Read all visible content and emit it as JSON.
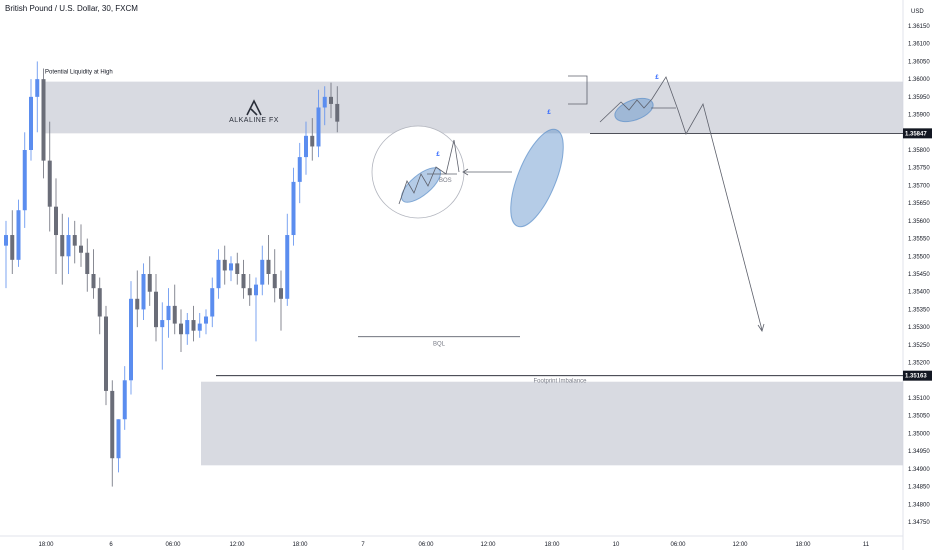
{
  "header": {
    "title": "British Pound / U.S. Dollar, 30, FXCM"
  },
  "axis": {
    "currency_label": "USD"
  },
  "colors": {
    "bull": "#5b8def",
    "bear": "#6a6d78",
    "zone": "#d1d4dc",
    "ellipse": "#5b8fc9",
    "accent": "#2962ff",
    "line": "#787b86"
  },
  "chart_data": {
    "type": "candlestick",
    "ylim": [
      1.2466,
      1.3627
    ],
    "y_ticks": [
      "1.36150",
      "1.36100",
      "1.36050",
      "1.36000",
      "1.35950",
      "1.35900",
      "1.35847",
      "1.35800",
      "1.35750",
      "1.35700",
      "1.35650",
      "1.35600",
      "1.35550",
      "1.35500",
      "1.35450",
      "1.35400",
      "1.35350",
      "1.35300",
      "1.35250",
      "1.35200",
      "1.35163",
      "1.35100",
      "1.35050",
      "1.35000",
      "1.34950",
      "1.34900",
      "1.34850",
      "1.34800",
      "1.34750"
    ],
    "x_ticks": [
      "18:00",
      "6",
      "06:00",
      "12:00",
      "18:00",
      "7",
      "06:00",
      "12:00",
      "18:00",
      "10",
      "06:00",
      "12:00",
      "18:00",
      "11"
    ],
    "price_tags": [
      {
        "price": 1.35847,
        "label": "1.35847"
      },
      {
        "price": 1.35163,
        "label": "1.35163"
      }
    ],
    "zones": [
      {
        "name": "Potential Liquidity at High",
        "from": 1.35847,
        "to": 1.35993
      },
      {
        "name": "Footprint Imbalance",
        "from": 1.3491,
        "to": 1.35146
      }
    ],
    "candles": [
      {
        "o": 1.3553,
        "h": 1.356,
        "l": 1.3541,
        "c": 1.3556
      },
      {
        "o": 1.3556,
        "h": 1.3563,
        "l": 1.3545,
        "c": 1.3549
      },
      {
        "o": 1.3549,
        "h": 1.3566,
        "l": 1.3547,
        "c": 1.3563
      },
      {
        "o": 1.3563,
        "h": 1.3585,
        "l": 1.3558,
        "c": 1.358
      },
      {
        "o": 1.358,
        "h": 1.36,
        "l": 1.3577,
        "c": 1.3595
      },
      {
        "o": 1.3595,
        "h": 1.3605,
        "l": 1.3585,
        "c": 1.36
      },
      {
        "o": 1.36,
        "h": 1.3603,
        "l": 1.3572,
        "c": 1.3577
      },
      {
        "o": 1.3577,
        "h": 1.3588,
        "l": 1.3557,
        "c": 1.3564
      },
      {
        "o": 1.3564,
        "h": 1.3572,
        "l": 1.3545,
        "c": 1.3556
      },
      {
        "o": 1.3556,
        "h": 1.3562,
        "l": 1.3542,
        "c": 1.355
      },
      {
        "o": 1.355,
        "h": 1.3561,
        "l": 1.3545,
        "c": 1.3556
      },
      {
        "o": 1.3556,
        "h": 1.356,
        "l": 1.3548,
        "c": 1.3553
      },
      {
        "o": 1.3553,
        "h": 1.3559,
        "l": 1.3547,
        "c": 1.3551
      },
      {
        "o": 1.3551,
        "h": 1.3555,
        "l": 1.354,
        "c": 1.3545
      },
      {
        "o": 1.3545,
        "h": 1.3552,
        "l": 1.3538,
        "c": 1.3541
      },
      {
        "o": 1.3541,
        "h": 1.3544,
        "l": 1.3528,
        "c": 1.3533
      },
      {
        "o": 1.3533,
        "h": 1.3536,
        "l": 1.3508,
        "c": 1.3512
      },
      {
        "o": 1.3512,
        "h": 1.3515,
        "l": 1.3485,
        "c": 1.3493
      },
      {
        "o": 1.3493,
        "h": 1.3498,
        "l": 1.3489,
        "c": 1.3504
      },
      {
        "o": 1.3504,
        "h": 1.3519,
        "l": 1.3501,
        "c": 1.3515
      },
      {
        "o": 1.3515,
        "h": 1.3543,
        "l": 1.3511,
        "c": 1.3538
      },
      {
        "o": 1.3538,
        "h": 1.3546,
        "l": 1.353,
        "c": 1.3535
      },
      {
        "o": 1.3535,
        "h": 1.3548,
        "l": 1.3532,
        "c": 1.3545
      },
      {
        "o": 1.3545,
        "h": 1.355,
        "l": 1.3536,
        "c": 1.354
      },
      {
        "o": 1.354,
        "h": 1.3545,
        "l": 1.3526,
        "c": 1.353
      },
      {
        "o": 1.353,
        "h": 1.3537,
        "l": 1.3518,
        "c": 1.3532
      },
      {
        "o": 1.3532,
        "h": 1.3541,
        "l": 1.3527,
        "c": 1.3536
      },
      {
        "o": 1.3536,
        "h": 1.3542,
        "l": 1.3528,
        "c": 1.3531
      },
      {
        "o": 1.3531,
        "h": 1.3535,
        "l": 1.3523,
        "c": 1.3528
      },
      {
        "o": 1.3528,
        "h": 1.3534,
        "l": 1.3525,
        "c": 1.3532
      },
      {
        "o": 1.3532,
        "h": 1.3536,
        "l": 1.3526,
        "c": 1.3529
      },
      {
        "o": 1.3529,
        "h": 1.3534,
        "l": 1.3527,
        "c": 1.3531
      },
      {
        "o": 1.3531,
        "h": 1.3535,
        "l": 1.3528,
        "c": 1.3533
      },
      {
        "o": 1.3533,
        "h": 1.3544,
        "l": 1.353,
        "c": 1.3541
      },
      {
        "o": 1.3541,
        "h": 1.3552,
        "l": 1.3538,
        "c": 1.3549
      },
      {
        "o": 1.3549,
        "h": 1.3553,
        "l": 1.3542,
        "c": 1.3546
      },
      {
        "o": 1.3546,
        "h": 1.355,
        "l": 1.3543,
        "c": 1.3548
      },
      {
        "o": 1.3548,
        "h": 1.3551,
        "l": 1.3542,
        "c": 1.3545
      },
      {
        "o": 1.3545,
        "h": 1.3549,
        "l": 1.3538,
        "c": 1.3541
      },
      {
        "o": 1.3541,
        "h": 1.3545,
        "l": 1.3536,
        "c": 1.3539
      },
      {
        "o": 1.3539,
        "h": 1.3544,
        "l": 1.3526,
        "c": 1.3542
      },
      {
        "o": 1.3542,
        "h": 1.3553,
        "l": 1.3539,
        "c": 1.3549
      },
      {
        "o": 1.3549,
        "h": 1.3556,
        "l": 1.3542,
        "c": 1.3545
      },
      {
        "o": 1.3545,
        "h": 1.3552,
        "l": 1.3537,
        "c": 1.3541
      },
      {
        "o": 1.3541,
        "h": 1.3546,
        "l": 1.3529,
        "c": 1.3538
      },
      {
        "o": 1.3538,
        "h": 1.3562,
        "l": 1.3536,
        "c": 1.3556
      },
      {
        "o": 1.3556,
        "h": 1.3575,
        "l": 1.3553,
        "c": 1.3571
      },
      {
        "o": 1.3571,
        "h": 1.3582,
        "l": 1.3565,
        "c": 1.3578
      },
      {
        "o": 1.3578,
        "h": 1.3588,
        "l": 1.3573,
        "c": 1.3584
      },
      {
        "o": 1.3584,
        "h": 1.3589,
        "l": 1.3577,
        "c": 1.3581
      },
      {
        "o": 1.3581,
        "h": 1.3597,
        "l": 1.3578,
        "c": 1.3592
      },
      {
        "o": 1.3592,
        "h": 1.3598,
        "l": 1.3587,
        "c": 1.3595
      },
      {
        "o": 1.3595,
        "h": 1.3599,
        "l": 1.3589,
        "c": 1.3593
      },
      {
        "o": 1.3593,
        "h": 1.3598,
        "l": 1.3585,
        "c": 1.3588
      }
    ],
    "annotations": [
      {
        "type": "label",
        "text": "BOS"
      },
      {
        "type": "label",
        "text": "BQL"
      },
      {
        "type": "label",
        "text": "ALKALINE FX"
      },
      {
        "type": "label",
        "text": "£"
      }
    ]
  }
}
